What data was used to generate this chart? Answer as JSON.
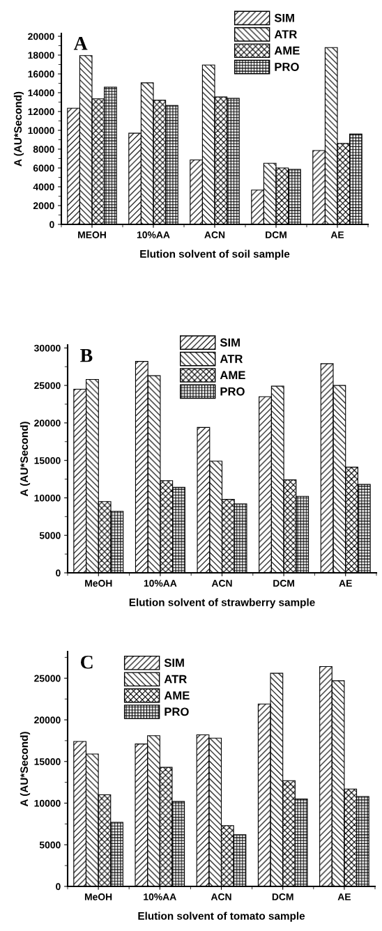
{
  "chart_data": [
    {
      "type": "bar",
      "annotations": [
        "A"
      ],
      "xlabel": "Elution solvent of soil sample",
      "ylabel": "A (AU*Second)",
      "categories": [
        "MEOH",
        "10%AA",
        "ACN",
        "DCM",
        "AE"
      ],
      "series": [
        {
          "name": "SIM",
          "color": "#000000",
          "values": [
            12350,
            9700,
            6850,
            3650,
            7850
          ]
        },
        {
          "name": "ATR",
          "color": "#000000",
          "values": [
            17950,
            15050,
            16950,
            6500,
            18800
          ]
        },
        {
          "name": "AME",
          "color": "#000000",
          "values": [
            13350,
            13200,
            13550,
            6000,
            8600
          ]
        },
        {
          "name": "PRO",
          "color": "#000000",
          "values": [
            14600,
            12650,
            13400,
            5850,
            9600
          ]
        }
      ],
      "ylim": [
        0,
        20300
      ],
      "yticks": [
        0,
        2000,
        4000,
        6000,
        8000,
        10000,
        12000,
        14000,
        16000,
        18000,
        20000
      ],
      "legend": "top right",
      "grid": false
    },
    {
      "type": "bar",
      "annotations": [
        "B"
      ],
      "xlabel": "Elution solvent of strawberry sample",
      "ylabel": "A (AU*Second)",
      "categories": [
        "MeOH",
        "10%AA",
        "ACN",
        "DCM",
        "AE"
      ],
      "series": [
        {
          "name": "SIM",
          "color": "#000000",
          "values": [
            24500,
            28200,
            19400,
            23500,
            27900
          ]
        },
        {
          "name": "ATR",
          "color": "#000000",
          "values": [
            25800,
            26300,
            14900,
            24900,
            25000
          ]
        },
        {
          "name": "AME",
          "color": "#000000",
          "values": [
            9500,
            12300,
            9800,
            12400,
            14100
          ]
        },
        {
          "name": "PRO",
          "color": "#000000",
          "values": [
            8200,
            11400,
            9200,
            10200,
            11800
          ]
        }
      ],
      "ylim": [
        0,
        30400
      ],
      "yticks": [
        0,
        5000,
        10000,
        15000,
        20000,
        25000,
        30000
      ],
      "legend": "top",
      "grid": false
    },
    {
      "type": "bar",
      "annotations": [
        "C"
      ],
      "xlabel": "Elution solvent of tomato sample",
      "ylabel": "A (AU*Second)",
      "categories": [
        "MeOH",
        "10%AA",
        "ACN",
        "DCM",
        "AE"
      ],
      "series": [
        {
          "name": "SIM",
          "color": "#000000",
          "values": [
            17400,
            17100,
            18200,
            21900,
            26400
          ]
        },
        {
          "name": "ATR",
          "color": "#000000",
          "values": [
            15900,
            18100,
            17800,
            25600,
            24700
          ]
        },
        {
          "name": "AME",
          "color": "#000000",
          "values": [
            11000,
            14300,
            7300,
            12700,
            11700
          ]
        },
        {
          "name": "PRO",
          "color": "#000000",
          "values": [
            7700,
            10200,
            6200,
            10500,
            10800
          ]
        }
      ],
      "ylim": [
        0,
        28200
      ],
      "yticks": [
        0,
        5000,
        10000,
        15000,
        20000,
        25000
      ],
      "legend": "top left",
      "grid": false
    }
  ]
}
